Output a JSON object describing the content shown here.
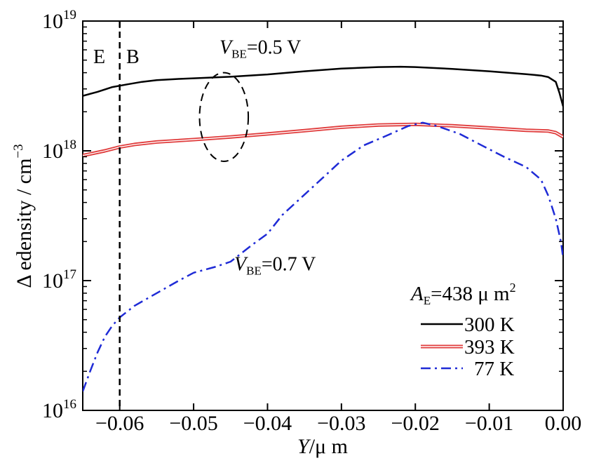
{
  "chart_data": {
    "type": "line",
    "xlabel": {
      "var": "Y",
      "sep": "/",
      "unit": "μ m"
    },
    "ylabel": {
      "text": "Δ edensity / cm",
      "sup": "−3"
    },
    "xlim": [
      -0.065,
      0.0
    ],
    "ylim": [
      1e+16,
      1e+19
    ],
    "yscale": "log",
    "xticks": [
      {
        "v": -0.06,
        "label": "−0.06"
      },
      {
        "v": -0.05,
        "label": "−0.05"
      },
      {
        "v": -0.04,
        "label": "−0.04"
      },
      {
        "v": -0.03,
        "label": "−0.03"
      },
      {
        "v": -0.02,
        "label": "−0.02"
      },
      {
        "v": -0.01,
        "label": "−0.01"
      },
      {
        "v": 0.0,
        "label": "0.00"
      }
    ],
    "yticks": [
      {
        "v": 1e+16,
        "base": "10",
        "exp": "16"
      },
      {
        "v": 1e+17,
        "base": "10",
        "exp": "17"
      },
      {
        "v": 1e+18,
        "base": "10",
        "exp": "18"
      },
      {
        "v": 1e+19,
        "base": "10",
        "exp": "19"
      }
    ],
    "grid": false,
    "legend_position": "bottom-right",
    "legend_title": {
      "var": "A",
      "sub": "E",
      "rest": "=438  μ m",
      "sup": "2"
    },
    "series": [
      {
        "name": "300  K",
        "color": "#000000",
        "style": "solid",
        "x": [
          -0.065,
          -0.063,
          -0.061,
          -0.059,
          -0.057,
          -0.055,
          -0.052,
          -0.05,
          -0.045,
          -0.04,
          -0.035,
          -0.03,
          -0.025,
          -0.022,
          -0.02,
          -0.015,
          -0.01,
          -0.005,
          -0.003,
          -0.002,
          -0.001,
          -0.0005,
          0.0
        ],
        "y": [
          2.65e+18,
          2.85e+18,
          3.1e+18,
          3.25e+18,
          3.4e+18,
          3.5e+18,
          3.58e+18,
          3.62e+18,
          3.72e+18,
          3.88e+18,
          4.1e+18,
          4.3e+18,
          4.42e+18,
          4.45e+18,
          4.42e+18,
          4.28e+18,
          4.1e+18,
          3.9e+18,
          3.8e+18,
          3.7e+18,
          3.4e+18,
          2.8e+18,
          2.2e+18
        ]
      },
      {
        "name": "393  K",
        "color": "#e03c3c",
        "style": "double",
        "x": [
          -0.065,
          -0.062,
          -0.06,
          -0.058,
          -0.055,
          -0.05,
          -0.045,
          -0.04,
          -0.035,
          -0.03,
          -0.025,
          -0.02,
          -0.015,
          -0.01,
          -0.005,
          -0.002,
          -0.001,
          0.0
        ],
        "y": [
          9.2e+17,
          1e+18,
          1.07e+18,
          1.12e+18,
          1.17e+18,
          1.22e+18,
          1.28e+18,
          1.35e+18,
          1.43e+18,
          1.52e+18,
          1.58e+18,
          1.6e+18,
          1.56e+18,
          1.5e+18,
          1.44e+18,
          1.42e+18,
          1.38e+18,
          1.28e+18
        ]
      },
      {
        "name": "77  K",
        "color": "#1f2bd6",
        "style": "dashdot",
        "x": [
          -0.065,
          -0.064,
          -0.063,
          -0.062,
          -0.061,
          -0.06,
          -0.058,
          -0.055,
          -0.052,
          -0.05,
          -0.047,
          -0.045,
          -0.042,
          -0.04,
          -0.038,
          -0.035,
          -0.032,
          -0.03,
          -0.027,
          -0.024,
          -0.021,
          -0.019,
          -0.017,
          -0.014,
          -0.011,
          -0.008,
          -0.005,
          -0.003,
          -0.002,
          -0.001,
          -0.0003,
          0.0
        ],
        "y": [
          1.4e+16,
          2e+16,
          2.8e+16,
          3.7e+16,
          4.5e+16,
          5.2e+16,
          6.4e+16,
          8e+16,
          1e+17,
          1.15e+17,
          1.28e+17,
          1.4e+17,
          1.9e+17,
          2.3e+17,
          3.2e+17,
          4.6e+17,
          6.6e+17,
          8.4e+17,
          1.1e+18,
          1.3e+18,
          1.55e+18,
          1.65e+18,
          1.55e+18,
          1.35e+18,
          1.1e+18,
          9e+17,
          7.5e+17,
          6e+17,
          4.5e+17,
          3e+17,
          2e+17,
          1.5e+17
        ]
      }
    ],
    "region_labels": [
      "E",
      "B"
    ],
    "region_boundary_x": -0.06,
    "annotations": [
      {
        "var": "V",
        "sub": "BE",
        "rest": "=0.5 V",
        "data_x": -0.0465,
        "data_y": 5.6e+18
      },
      {
        "var": "V",
        "sub": "BE",
        "rest": "=0.7 V",
        "data_x": -0.0445,
        "data_y": 1.2e+17
      }
    ],
    "ellipse": {
      "cx": -0.0459,
      "cy": 1.9e+18,
      "rx": 0.0033,
      "y_top": 4e+18,
      "y_bottom": 8.3e+17
    }
  }
}
